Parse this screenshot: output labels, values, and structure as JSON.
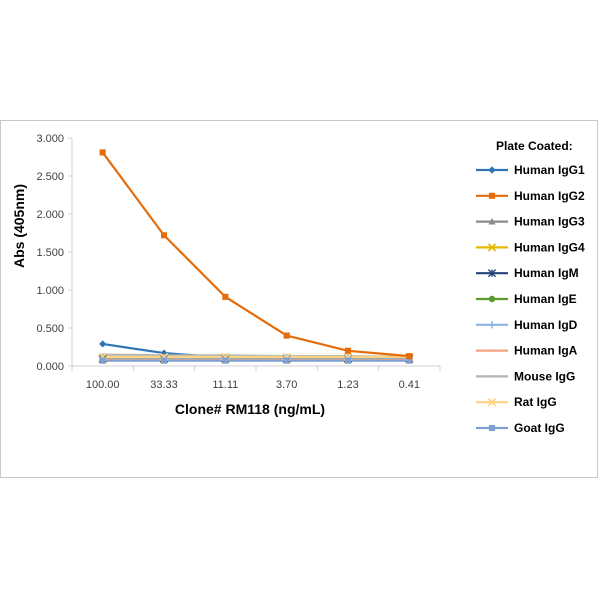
{
  "chart_data": {
    "type": "line",
    "xlabel": "Clone# RM118 (ng/mL)",
    "ylabel": "Abs (405nm)",
    "categories": [
      "100.00",
      "33.33",
      "11.11",
      "3.70",
      "1.23",
      "0.41"
    ],
    "yticks": [
      "0.000",
      "0.500",
      "1.000",
      "1.500",
      "2.000",
      "2.500",
      "3.000"
    ],
    "ylim": [
      0,
      3.0
    ],
    "legend_title": "Plate Coated:",
    "legend_position": "right",
    "grid": false,
    "series": [
      {
        "name": "Human IgG1",
        "color": "#2e75b6",
        "marker": "diamond",
        "values": [
          0.29,
          0.17,
          0.11,
          0.1,
          0.09,
          0.09
        ]
      },
      {
        "name": "Human IgG2",
        "color": "#e46c0a",
        "marker": "square",
        "values": [
          2.81,
          1.72,
          0.91,
          0.4,
          0.2,
          0.13
        ]
      },
      {
        "name": "Human IgG3",
        "color": "#8c8c8c",
        "marker": "triangle",
        "values": [
          0.08,
          0.08,
          0.08,
          0.08,
          0.08,
          0.08
        ]
      },
      {
        "name": "Human IgG4",
        "color": "#e6b800",
        "marker": "x",
        "values": [
          0.09,
          0.09,
          0.09,
          0.09,
          0.09,
          0.09
        ]
      },
      {
        "name": "Human IgM",
        "color": "#264478",
        "marker": "star",
        "values": [
          0.1,
          0.1,
          0.1,
          0.1,
          0.1,
          0.1
        ]
      },
      {
        "name": "Human IgE",
        "color": "#5b9b2c",
        "marker": "circle",
        "values": [
          0.09,
          0.09,
          0.09,
          0.09,
          0.09,
          0.09
        ]
      },
      {
        "name": "Human IgD",
        "color": "#8fb4e3",
        "marker": "plus",
        "values": [
          0.11,
          0.11,
          0.11,
          0.11,
          0.11,
          0.11
        ]
      },
      {
        "name": "Human IgA",
        "color": "#f4a582",
        "marker": "dash",
        "values": [
          0.08,
          0.08,
          0.08,
          0.08,
          0.08,
          0.08
        ]
      },
      {
        "name": "Mouse IgG",
        "color": "#b4b4b4",
        "marker": "dash",
        "values": [
          0.15,
          0.14,
          0.14,
          0.13,
          0.13,
          0.12
        ]
      },
      {
        "name": "Rat IgG",
        "color": "#ffd280",
        "marker": "x",
        "values": [
          0.12,
          0.12,
          0.12,
          0.12,
          0.12,
          0.12
        ]
      },
      {
        "name": "Goat IgG",
        "color": "#7f9fd4",
        "marker": "square",
        "values": [
          0.07,
          0.07,
          0.07,
          0.07,
          0.07,
          0.07
        ]
      }
    ]
  }
}
